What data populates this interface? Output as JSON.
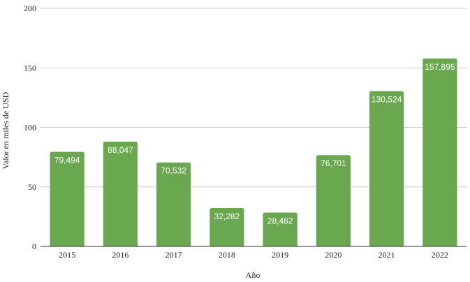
{
  "chart_data": {
    "type": "bar",
    "categories": [
      "2015",
      "2016",
      "2017",
      "2018",
      "2019",
      "2020",
      "2021",
      "2022"
    ],
    "values": [
      79.494,
      88.047,
      70.532,
      32.282,
      28.482,
      76.701,
      130.524,
      157.895
    ],
    "data_labels": [
      "79,494",
      "88,047",
      "70,532",
      "32,282",
      "28,482",
      "76,701",
      "130,524",
      "157,895"
    ],
    "xlabel": "Año",
    "ylabel": "Valor en miles de USD",
    "ylim": [
      0,
      200
    ],
    "yticks": [
      0,
      50,
      100,
      150,
      200
    ],
    "grid": true,
    "bar_color": "#6aa84f"
  }
}
